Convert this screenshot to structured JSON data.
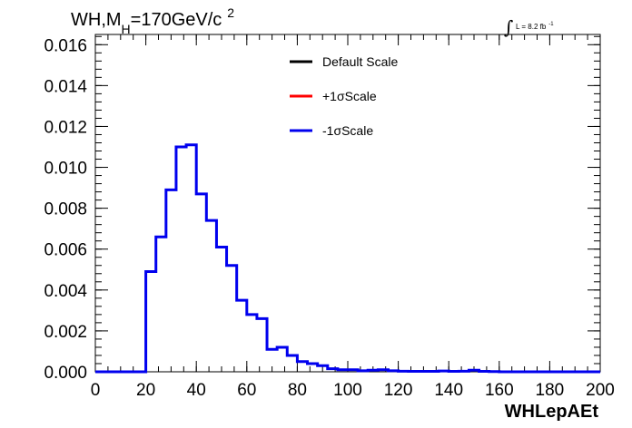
{
  "chart_data": {
    "type": "line",
    "title": "WH,M_H=170GeV/c^2",
    "title_parts": {
      "main": "WH,M",
      "sub": "H",
      "rest": "=170GeV/c",
      "sup": "2"
    },
    "annotation": {
      "integral": "∫",
      "text": "L = 8.2 fb",
      "sup": "-1"
    },
    "xlabel": "WHLepAEt",
    "ylabel": "",
    "xlim": [
      0,
      200
    ],
    "ylim": [
      0,
      0.0165
    ],
    "x_ticks": [
      "0",
      "20",
      "40",
      "60",
      "80",
      "100",
      "120",
      "140",
      "160",
      "180",
      "200"
    ],
    "y_ticks": [
      "0.000",
      "0.002",
      "0.004",
      "0.006",
      "0.008",
      "0.010",
      "0.012",
      "0.014",
      "0.016"
    ],
    "bin_width": 4,
    "bin_edges_start": 0,
    "legend": {
      "placement": "top-center",
      "entries": [
        {
          "label": "Default Scale",
          "color": "#000000"
        },
        {
          "label": "+1σScale",
          "color": "#ff0000"
        },
        {
          "label": "-1σScale",
          "color": "#0000ee"
        }
      ]
    },
    "series": [
      {
        "name": "-1σScale",
        "color": "#0000ee",
        "values": [
          0,
          0,
          0,
          0,
          0,
          0.0049,
          0.0066,
          0.0089,
          0.011,
          0.0111,
          0.0087,
          0.0074,
          0.0061,
          0.0052,
          0.0035,
          0.0028,
          0.0026,
          0.0011,
          0.0012,
          0.0008,
          0.0005,
          0.0004,
          0.0003,
          0.00015,
          0.0001,
          0.0001,
          5e-05,
          8e-05,
          0.0001,
          5e-05,
          3e-05,
          2e-05,
          2e-05,
          2e-05,
          4e-05,
          2e-05,
          3e-05,
          8e-05,
          2e-05,
          1e-05,
          0,
          0,
          0,
          0,
          0,
          0,
          0,
          0,
          0,
          0
        ]
      }
    ]
  }
}
